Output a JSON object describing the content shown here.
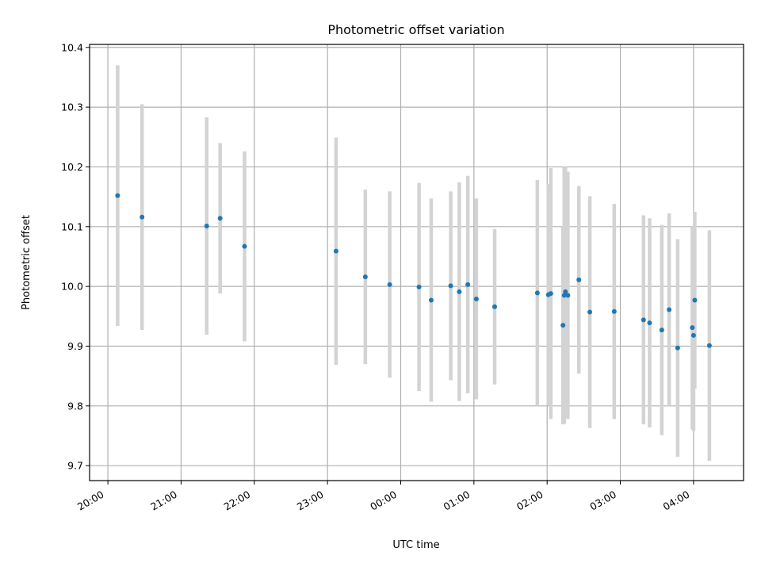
{
  "chart_data": {
    "type": "scatter",
    "title": "Photometric offset variation",
    "xlabel": "UTC time",
    "ylabel": "Photometric offset",
    "xlim": [
      "19:45",
      "04:41"
    ],
    "ylim": [
      9.675,
      10.405
    ],
    "grid": true,
    "x_ticks": [
      "20:00",
      "21:00",
      "22:00",
      "23:00",
      "00:00",
      "01:00",
      "02:00",
      "03:00",
      "04:00"
    ],
    "y_ticks": [
      "9.7",
      "9.8",
      "9.9",
      "10.0",
      "10.1",
      "10.2",
      "10.3",
      "10.4"
    ],
    "colors": {
      "points": "#1f77b4",
      "errorbars": "#d3d3d3",
      "grid": "#b0b0b0"
    },
    "series": [
      {
        "points": [
          {
            "x": "20:08",
            "y": 10.152,
            "err": 0.218
          },
          {
            "x": "20:28",
            "y": 10.116,
            "err": 0.189
          },
          {
            "x": "21:21",
            "y": 10.101,
            "err": 0.182
          },
          {
            "x": "21:32",
            "y": 10.114,
            "err": 0.126
          },
          {
            "x": "21:52",
            "y": 10.067,
            "err": 0.159
          },
          {
            "x": "23:07",
            "y": 10.059,
            "err": 0.19
          },
          {
            "x": "23:31",
            "y": 10.016,
            "err": 0.146
          },
          {
            "x": "23:51",
            "y": 10.003,
            "err": 0.156
          },
          {
            "x": "00:15",
            "y": 9.999,
            "err": 0.174
          },
          {
            "x": "00:25",
            "y": 9.977,
            "err": 0.17
          },
          {
            "x": "00:41",
            "y": 10.001,
            "err": 0.158
          },
          {
            "x": "00:48",
            "y": 9.991,
            "err": 0.183
          },
          {
            "x": "00:55",
            "y": 10.003,
            "err": 0.182
          },
          {
            "x": "01:02",
            "y": 9.979,
            "err": 0.168
          },
          {
            "x": "01:17",
            "y": 9.966,
            "err": 0.13
          },
          {
            "x": "01:52",
            "y": 9.989,
            "err": 0.189
          },
          {
            "x": "02:01",
            "y": 9.986,
            "err": 0.185
          },
          {
            "x": "02:03",
            "y": 9.988,
            "err": 0.21
          },
          {
            "x": "02:13",
            "y": 9.935,
            "err": 0.166
          },
          {
            "x": "02:14",
            "y": 9.985,
            "err": 0.215
          },
          {
            "x": "02:15",
            "y": 9.991,
            "err": 0.209
          },
          {
            "x": "02:17",
            "y": 9.985,
            "err": 0.207
          },
          {
            "x": "02:26",
            "y": 10.011,
            "err": 0.157
          },
          {
            "x": "02:35",
            "y": 9.957,
            "err": 0.194
          },
          {
            "x": "02:55",
            "y": 9.958,
            "err": 0.18
          },
          {
            "x": "03:19",
            "y": 9.944,
            "err": 0.175
          },
          {
            "x": "03:24",
            "y": 9.939,
            "err": 0.175
          },
          {
            "x": "03:34",
            "y": 9.927,
            "err": 0.176
          },
          {
            "x": "03:40",
            "y": 9.961,
            "err": 0.161
          },
          {
            "x": "03:47",
            "y": 9.897,
            "err": 0.182
          },
          {
            "x": "03:59",
            "y": 9.931,
            "err": 0.17
          },
          {
            "x": "04:00",
            "y": 9.918,
            "err": 0.16
          },
          {
            "x": "04:01",
            "y": 9.977,
            "err": 0.148
          },
          {
            "x": "04:13",
            "y": 9.901,
            "err": 0.193
          }
        ]
      }
    ]
  }
}
